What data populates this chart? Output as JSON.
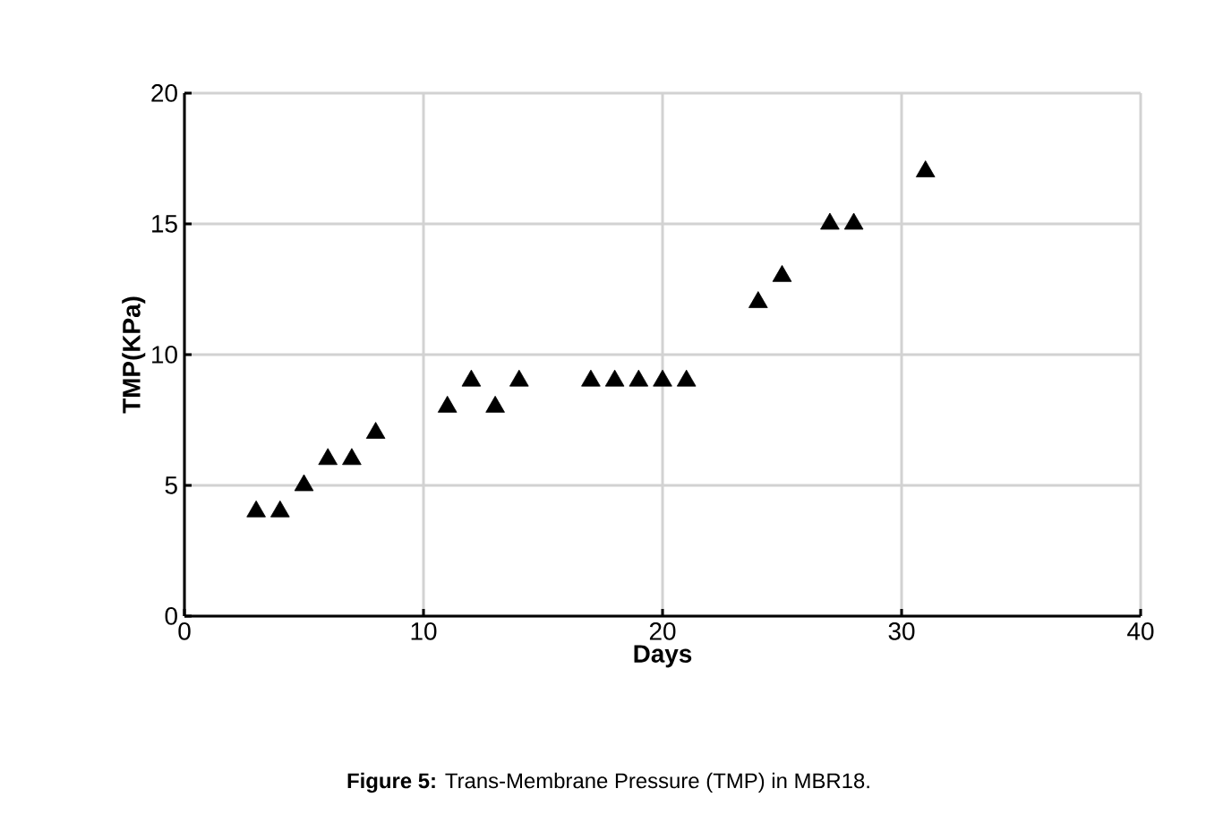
{
  "chart_data": {
    "type": "scatter",
    "xlabel": "Days",
    "ylabel": "TMP(KPa)",
    "annotations": [
      "**Figure 5:** Trans-Membrane Pressure (TMP) in MBR18."
    ],
    "x": [
      3,
      4,
      5,
      6,
      7,
      8,
      11,
      12,
      13,
      14,
      17,
      18,
      19,
      20,
      21,
      24,
      25,
      27,
      28,
      31
    ],
    "values": [
      4,
      4,
      5,
      6,
      6,
      7,
      8,
      9,
      8,
      9,
      9,
      9,
      9,
      9,
      9,
      12,
      13,
      15,
      15,
      17
    ],
    "color": "#000000",
    "marker": "triangle",
    "xlim": [
      0,
      40
    ],
    "ylim": [
      0,
      20
    ],
    "xticks": [
      0,
      10,
      20,
      30,
      40
    ],
    "yticks": [
      0,
      5,
      10,
      15,
      20
    ],
    "grid": true
  }
}
